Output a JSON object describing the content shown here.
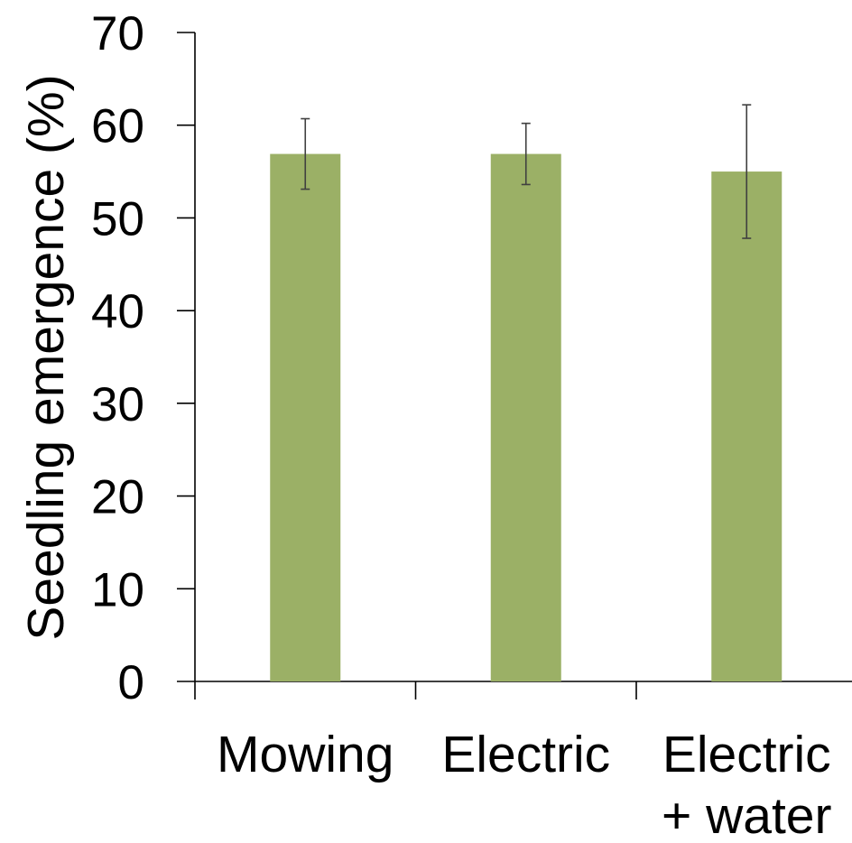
{
  "chart_data": {
    "type": "bar",
    "title": "",
    "xlabel": "",
    "ylabel": "Seedling emergence (%)",
    "ylim": [
      0,
      70
    ],
    "yticks": [
      0,
      10,
      20,
      30,
      40,
      50,
      60,
      70
    ],
    "grid": false,
    "legend": "none",
    "categories": [
      [
        "Mowing"
      ],
      [
        "Electric"
      ],
      [
        "Electric",
        "+ water"
      ]
    ],
    "series": [
      {
        "values": [
          56.9,
          56.9,
          55.0
        ],
        "error": [
          3.8,
          3.3,
          7.2
        ],
        "color": "#9bb066"
      }
    ]
  }
}
